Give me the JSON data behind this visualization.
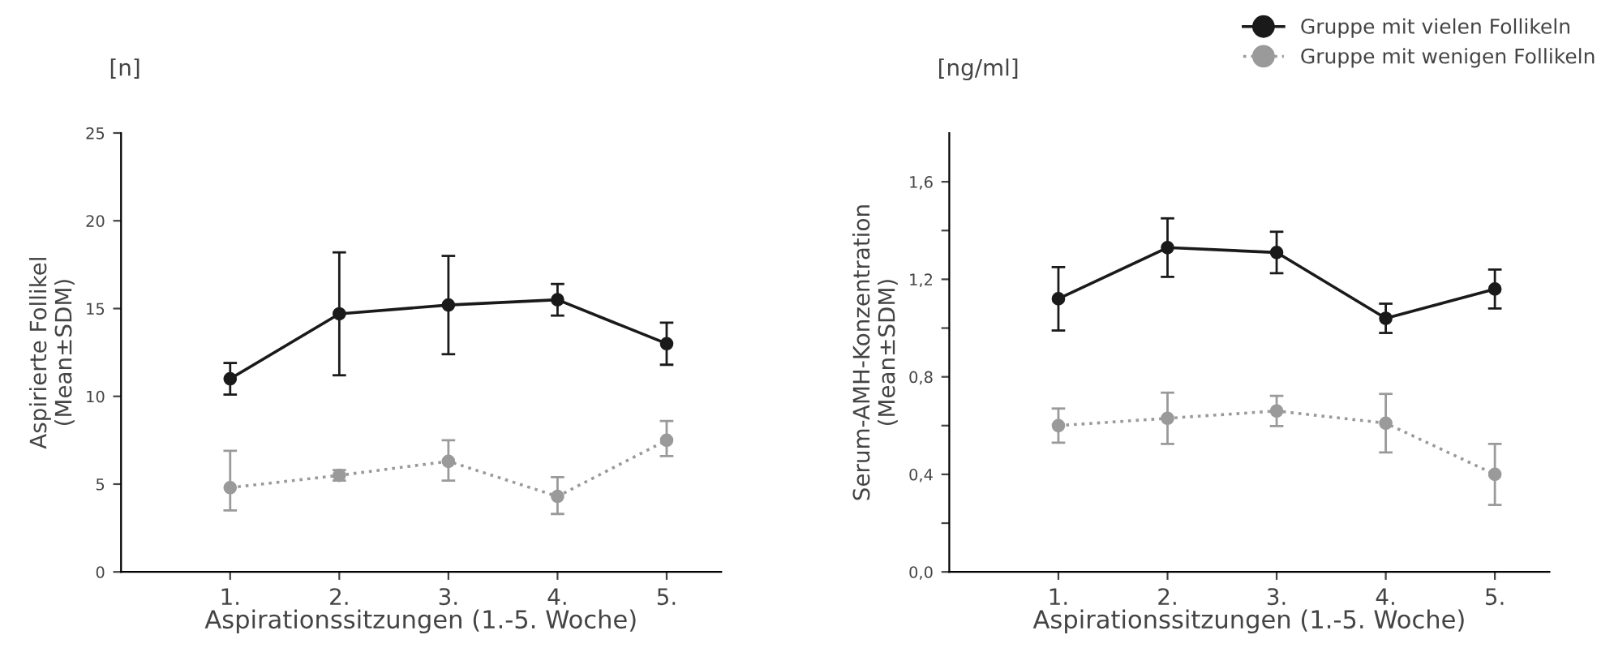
{
  "chart_data": [
    {
      "type": "line",
      "xlabel": "Aspirationssitzungen (1.-5. Woche)",
      "ylabel": "Aspirierte Follikel\n(Mean±SDM)",
      "annotations": [
        "[n]"
      ],
      "categories": [
        "1.",
        "2.",
        "3.",
        "4.",
        "5."
      ],
      "ylim": [
        0,
        25
      ],
      "yticks": [
        0,
        5,
        10,
        15,
        20,
        25
      ],
      "grid": false,
      "legend": false,
      "series": [
        {
          "color": "#1a1a1a",
          "marker": "circle",
          "line_style": "solid",
          "values": [
            11.0,
            14.7,
            15.2,
            15.5,
            13.0
          ],
          "errors": [
            0.9,
            3.5,
            2.8,
            0.9,
            1.2
          ]
        },
        {
          "color": "#9a9a9a",
          "marker": "circle",
          "line_style": "dotted",
          "values": [
            4.8,
            5.5,
            6.3,
            4.3,
            7.5
          ],
          "errors": [
            [
              3.5,
              6.9
            ],
            0.3,
            [
              5.2,
              7.5
            ],
            [
              3.3,
              5.4
            ],
            [
              6.6,
              8.6
            ]
          ]
        }
      ]
    },
    {
      "type": "line",
      "xlabel": "Aspirationssitzungen (1.-5. Woche)",
      "ylabel": "Serum-AMH-Konzentration\n(Mean±SDM)",
      "annotations": [
        "[ng/ml]"
      ],
      "categories": [
        "1.",
        "2.",
        "3.",
        "4.",
        "5."
      ],
      "ylim": [
        0,
        1.8
      ],
      "yticks": [
        {
          "value": 0,
          "label": "0,0"
        },
        {
          "value": 0.2,
          "label": null
        },
        {
          "value": 0.4,
          "label": "0,4"
        },
        {
          "value": 0.6,
          "label": null
        },
        {
          "value": 0.8,
          "label": "0,8"
        },
        {
          "value": 1.0,
          "label": null
        },
        {
          "value": 1.2,
          "label": "1,2"
        },
        {
          "value": 1.4,
          "label": null
        },
        {
          "value": 1.6,
          "label": "1,6"
        }
      ],
      "grid": false,
      "legend": "top right",
      "series": [
        {
          "name": "Gruppe mit vielen Follikeln",
          "color": "#1a1a1a",
          "marker": "circle",
          "line_style": "solid",
          "values": [
            1.12,
            1.33,
            1.31,
            1.04,
            1.16
          ],
          "errors": [
            0.13,
            0.12,
            0.085,
            0.06,
            0.08
          ]
        },
        {
          "name": "Gruppe mit wenigen Follikeln",
          "color": "#9a9a9a",
          "marker": "circle",
          "line_style": "dotted",
          "values": [
            0.6,
            0.63,
            0.66,
            0.61,
            0.4
          ],
          "errors": [
            0.07,
            0.105,
            0.062,
            0.12,
            0.125
          ]
        }
      ]
    }
  ]
}
